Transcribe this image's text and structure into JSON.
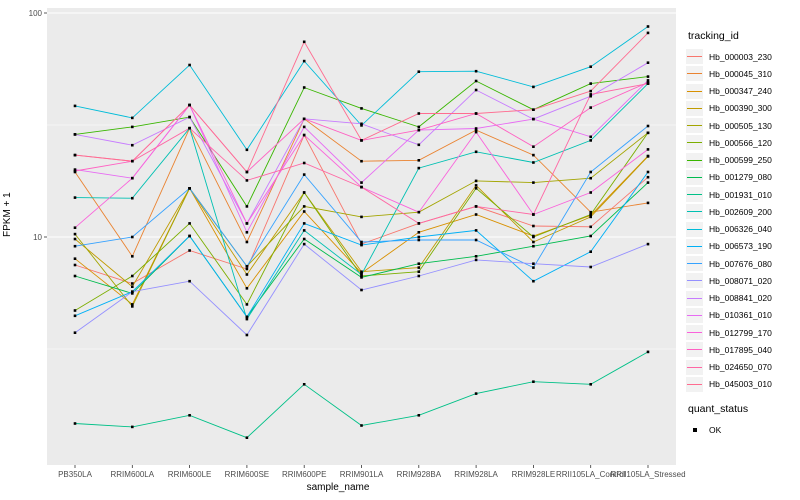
{
  "figure": {
    "panel_background": "#EBEBEB",
    "grid_color": "#FFFFFF",
    "axis_text_color": "#4D4D4D",
    "tick_mark_color": "#333333",
    "point_color": "#000000"
  },
  "legend": {
    "tracking_title": "tracking_id",
    "quant_title": "quant_status",
    "quant_items": [
      {
        "label": "OK",
        "shape": "filled-square",
        "color": "#000000"
      }
    ]
  },
  "chart_data": {
    "type": "line",
    "title": "",
    "xlabel": "sample_name",
    "ylabel": "FPKM + 1",
    "y_scale": "log10",
    "ylim": [
      1.03,
      107
    ],
    "y_major_ticks": [
      100,
      10
    ],
    "y_tick_labels": [
      "100",
      "10"
    ],
    "y_minor_ticks": [
      31.62,
      3.162
    ],
    "grid": true,
    "legend_position": "right",
    "point_marker": "small-black-square (quant_status = OK at every point)",
    "categories": [
      "PB350LA",
      "RRIM600LA",
      "RRIM600LE",
      "RRIM600SE",
      "RRIM600PE",
      "RRIM901LA",
      "RRIM928BA",
      "RRIM928LA",
      "RRIM928LE",
      "RRII105LA_Control",
      "RRII105LA_Stressed"
    ],
    "series": [
      {
        "name": "Hb_000003_230",
        "color": "#F8766D",
        "values": [
          7.5,
          6.2,
          8.7,
          7.2,
          28.5,
          9.3,
          11.5,
          13.7,
          11.2,
          11.1,
          18.5
        ]
      },
      {
        "name": "Hb_000045_310",
        "color": "#EA8331",
        "values": [
          19.5,
          8.2,
          30.6,
          9.5,
          33.7,
          21.8,
          22.0,
          30.0,
          23.2,
          12.9,
          14.2
        ]
      },
      {
        "name": "Hb_000347_240",
        "color": "#D89000",
        "values": [
          8.0,
          5.0,
          16.5,
          5.9,
          13.0,
          6.9,
          10.5,
          12.6,
          10.1,
          12.5,
          23.0
        ]
      },
      {
        "name": "Hb_000390_300",
        "color": "#C09B00",
        "values": [
          9.8,
          6.0,
          16.5,
          6.8,
          15.8,
          7.0,
          7.3,
          17.0,
          9.5,
          12.3,
          22.9
        ]
      },
      {
        "name": "Hb_000505_130",
        "color": "#A3A500",
        "values": [
          10.3,
          4.9,
          16.5,
          7.4,
          13.7,
          12.3,
          12.9,
          17.8,
          17.5,
          18.3,
          29.2
        ]
      },
      {
        "name": "Hb_000566_120",
        "color": "#7CAE00",
        "values": [
          4.7,
          6.7,
          11.5,
          5.0,
          15.8,
          6.7,
          7.0,
          16.5,
          10.0,
          12.6,
          29.2
        ]
      },
      {
        "name": "Hb_000599_250",
        "color": "#39B600",
        "values": [
          28.7,
          31.0,
          34.3,
          13.7,
          46.5,
          37.5,
          31.0,
          49.7,
          37.0,
          48.4,
          52.0
        ]
      },
      {
        "name": "Hb_001279_080",
        "color": "#00BB4E",
        "values": [
          6.7,
          5.6,
          10.1,
          4.4,
          9.8,
          6.6,
          7.6,
          8.2,
          9.1,
          10.1,
          17.5
        ]
      },
      {
        "name": "Hb_001931_010",
        "color": "#00C087",
        "values": [
          1.47,
          1.42,
          1.6,
          1.27,
          2.2,
          1.44,
          1.6,
          2.0,
          2.26,
          2.2,
          3.07
        ]
      },
      {
        "name": "Hb_002609_200",
        "color": "#00C0B2",
        "values": [
          15.0,
          14.9,
          30.6,
          4.3,
          10.7,
          6.8,
          20.3,
          24.0,
          21.5,
          27.0,
          48.4
        ]
      },
      {
        "name": "Hb_006326_040",
        "color": "#00BCD8",
        "values": [
          38.5,
          34.0,
          58.6,
          24.5,
          61.0,
          31.5,
          54.7,
          55.0,
          46.8,
          57.6,
          87.0
        ]
      },
      {
        "name": "Hb_006573_190",
        "color": "#00B0F6",
        "values": [
          4.45,
          5.7,
          10.1,
          4.4,
          11.5,
          9.2,
          10.0,
          10.7,
          6.35,
          8.6,
          19.5
        ]
      },
      {
        "name": "Hb_007676_080",
        "color": "#35A2FF",
        "values": [
          9.1,
          10.0,
          16.5,
          7.4,
          19.0,
          9.5,
          9.7,
          9.7,
          7.3,
          19.5,
          31.3
        ]
      },
      {
        "name": "Hb_008071_020",
        "color": "#9590FF",
        "values": [
          3.74,
          5.7,
          6.35,
          3.65,
          9.3,
          5.8,
          6.7,
          7.9,
          7.6,
          7.35,
          9.3
        ]
      },
      {
        "name": "Hb_008841_020",
        "color": "#C77CFF",
        "values": [
          28.7,
          25.7,
          34.3,
          11.5,
          33.7,
          32.0,
          25.8,
          45.3,
          33.6,
          42.5,
          60.0
        ]
      },
      {
        "name": "Hb_010361_010",
        "color": "#E76BF3",
        "values": [
          20.0,
          18.3,
          38.8,
          10.5,
          31.0,
          17.5,
          30.0,
          30.5,
          33.6,
          28.0,
          50.0
        ]
      },
      {
        "name": "Hb_012799_170",
        "color": "#FA62DB",
        "values": [
          11.0,
          18.3,
          38.8,
          11.5,
          28.5,
          16.7,
          12.9,
          29.4,
          12.6,
          15.8,
          24.6
        ]
      },
      {
        "name": "Hb_017895_040",
        "color": "#FF61C3",
        "values": [
          19.7,
          21.8,
          38.8,
          19.5,
          33.7,
          27.0,
          30.0,
          35.6,
          25.3,
          37.8,
          49.0
        ]
      },
      {
        "name": "Hb_024650_070",
        "color": "#FF67A4",
        "values": [
          23.2,
          21.8,
          30.6,
          17.9,
          21.4,
          16.7,
          11.5,
          13.7,
          12.6,
          43.3,
          48.4
        ]
      },
      {
        "name": "Hb_045003_010",
        "color": "#FF6C90",
        "values": [
          23.2,
          21.8,
          38.8,
          19.5,
          74.4,
          27.0,
          35.6,
          35.6,
          37.0,
          44.8,
          81.5
        ]
      }
    ]
  }
}
